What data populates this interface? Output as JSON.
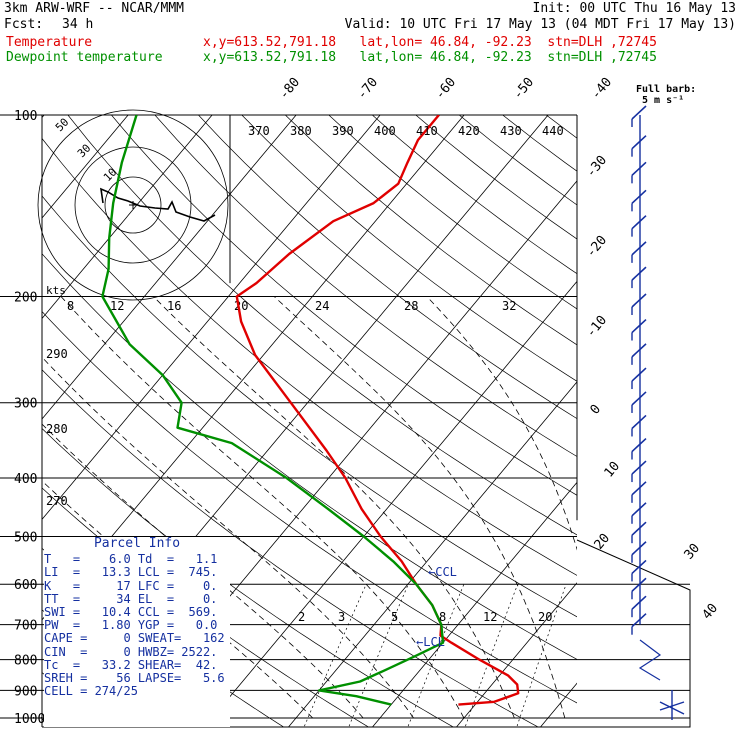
{
  "header": {
    "model": "3km ARW-WRF -- NCAR/MMM",
    "init": "Init: 00 UTC Thu 16 May 13",
    "fcst_label": "Fcst:",
    "fcst_value": "34 h",
    "valid": "Valid: 10 UTC Fri 17 May 13 (04 MDT Fri 17 May 13)",
    "temperature_label": "Temperature",
    "dewpoint_label": "Dewpoint temperature",
    "temperature_loc": "x,y=613.52,791.18   lat,lon= 46.84, -92.23  stn=DLH ,72745",
    "dewpoint_loc": "x,y=613.52,791.18   lat,lon= 46.84, -92.23  stn=DLH ,72745",
    "full_barb_line1": "Full barb:",
    "full_barb_line2": "5 m s⁻¹"
  },
  "colors": {
    "temperature": "#e00000",
    "dewpoint": "#009000",
    "parcel_text": "#1530a0",
    "wind_barbs": "#1530a0",
    "grid": "#000000"
  },
  "chart_data": {
    "type": "line",
    "skewt": true,
    "pressure_levels": [
      "100",
      "200",
      "300",
      "400",
      "500",
      "600",
      "700",
      "800",
      "900",
      "1000"
    ],
    "pressure_values": [
      100,
      200,
      300,
      400,
      500,
      600,
      700,
      800,
      900,
      1000
    ],
    "isotherm_labels": [
      "-80",
      "-70",
      "-60",
      "-50",
      "-40",
      "-30",
      "-20",
      "-10",
      "0",
      "10",
      "20",
      "30",
      "40"
    ],
    "isotherm_values": [
      -80,
      -70,
      -60,
      -50,
      -40,
      -30,
      -20,
      -10,
      0,
      10,
      20,
      30,
      40
    ],
    "theta_labels": [
      "370",
      "380",
      "390",
      "400",
      "410",
      "420",
      "430",
      "440"
    ],
    "dry_adiabat_labels": [
      "290",
      "280",
      "270"
    ],
    "mixing_ratio_labels": [
      "2",
      "3",
      "5",
      "8",
      "12",
      "20"
    ],
    "mixing_ratio_values": [
      2,
      3,
      5,
      8,
      12,
      20
    ],
    "ccl_label": "←CCL",
    "lcl_label": "←LCL",
    "series": [
      {
        "name": "Temperature",
        "points": [
          {
            "p": 950,
            "t": 8
          },
          {
            "p": 940,
            "t": 12
          },
          {
            "p": 910,
            "t": 14
          },
          {
            "p": 880,
            "t": 13
          },
          {
            "p": 850,
            "t": 11
          },
          {
            "p": 800,
            "t": 6
          },
          {
            "p": 750,
            "t": 1
          },
          {
            "p": 730,
            "t": -1
          },
          {
            "p": 700,
            "t": -2
          },
          {
            "p": 650,
            "t": -5
          },
          {
            "p": 600,
            "t": -9
          },
          {
            "p": 550,
            "t": -13
          },
          {
            "p": 500,
            "t": -18
          },
          {
            "p": 450,
            "t": -23
          },
          {
            "p": 400,
            "t": -28
          },
          {
            "p": 360,
            "t": -33
          },
          {
            "p": 300,
            "t": -42
          },
          {
            "p": 250,
            "t": -51
          },
          {
            "p": 220,
            "t": -56
          },
          {
            "p": 200,
            "t": -59
          },
          {
            "p": 190,
            "t": -58
          },
          {
            "p": 170,
            "t": -57
          },
          {
            "p": 150,
            "t": -55
          },
          {
            "p": 140,
            "t": -52
          },
          {
            "p": 130,
            "t": -51
          },
          {
            "p": 120,
            "t": -52
          },
          {
            "p": 110,
            "t": -53
          },
          {
            "p": 100,
            "t": -53
          }
        ]
      },
      {
        "name": "Dewpoint temperature",
        "points": [
          {
            "p": 950,
            "t": 0
          },
          {
            "p": 920,
            "t": -5
          },
          {
            "p": 900,
            "t": -10
          },
          {
            "p": 870,
            "t": -6
          },
          {
            "p": 830,
            "t": -4
          },
          {
            "p": 790,
            "t": -2
          },
          {
            "p": 750,
            "t": 0
          },
          {
            "p": 700,
            "t": -2
          },
          {
            "p": 650,
            "t": -5
          },
          {
            "p": 600,
            "t": -9
          },
          {
            "p": 550,
            "t": -14
          },
          {
            "p": 500,
            "t": -20
          },
          {
            "p": 450,
            "t": -27
          },
          {
            "p": 400,
            "t": -35
          },
          {
            "p": 350,
            "t": -45
          },
          {
            "p": 330,
            "t": -53
          },
          {
            "p": 300,
            "t": -55
          },
          {
            "p": 270,
            "t": -60
          },
          {
            "p": 240,
            "t": -67
          },
          {
            "p": 200,
            "t": -75
          },
          {
            "p": 180,
            "t": -77
          },
          {
            "p": 160,
            "t": -80
          },
          {
            "p": 140,
            "t": -83
          },
          {
            "p": 120,
            "t": -86
          },
          {
            "p": 100,
            "t": -89
          }
        ]
      }
    ],
    "wind_barbs": [
      {
        "p": 100
      },
      {
        "p": 112
      },
      {
        "p": 124
      },
      {
        "p": 138
      },
      {
        "p": 152
      },
      {
        "p": 168
      },
      {
        "p": 185
      },
      {
        "p": 205
      },
      {
        "p": 226
      },
      {
        "p": 248
      },
      {
        "p": 272
      },
      {
        "p": 298
      },
      {
        "p": 326
      },
      {
        "p": 356
      },
      {
        "p": 388
      },
      {
        "p": 420
      },
      {
        "p": 455
      },
      {
        "p": 490
      },
      {
        "p": 528
      },
      {
        "p": 567
      },
      {
        "p": 607
      },
      {
        "p": 650
      },
      {
        "p": 695
      }
    ],
    "hodograph": {
      "range_labels": [
        "50",
        "30",
        "10"
      ],
      "kts_label": "kts",
      "kts_scale_labels": [
        "8",
        "12",
        "16",
        "20",
        "24",
        "28",
        "32"
      ]
    },
    "side_scale_labels": [
      "30",
      "40"
    ]
  },
  "parcel_info": {
    "title": "Parcel Info",
    "rows": [
      "T   =    6.0 Td  =   1.1",
      "LI  =   13.3 LCL =  745.",
      "K   =     17 LFC =    0.",
      "TT  =     34 EL  =    0.",
      "SWI =   10.4 CCL =  569.",
      "PW  =   1.80 YGP =   0.0",
      "CAPE =     0 SWEAT=   162",
      "CIN  =     0 HWBZ= 2522.",
      "Tc  =   33.2 SHEAR=  42.",
      "SREH =    56 LAPSE=   5.6",
      "CELL = 274/25"
    ]
  }
}
